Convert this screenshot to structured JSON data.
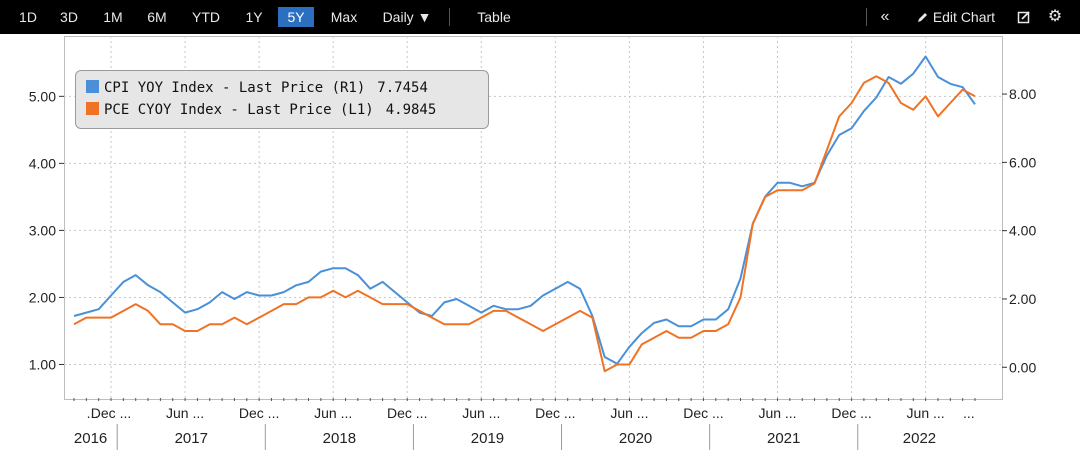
{
  "toolbar": {
    "periods": [
      "1D",
      "3D",
      "1M",
      "6M",
      "YTD",
      "1Y",
      "5Y",
      "Max"
    ],
    "active_period": "5Y",
    "frequency": "Daily",
    "table_label": "Table",
    "collapse_label": "«",
    "edit_chart_label": "Edit Chart",
    "icons": [
      "collapse-icon",
      "pencil-icon",
      "edit-box-icon",
      "gear-icon"
    ]
  },
  "legend": [
    {
      "name": "CPI YOY Index - Last Price (R1)",
      "value": "7.7454",
      "color": "#4a90d9"
    },
    {
      "name": "PCE CYOY Index - Last Price (L1)",
      "value": "4.9845",
      "color": "#f07325"
    }
  ],
  "chart_data": {
    "type": "line",
    "left_axis": {
      "min": 0.5,
      "max": 5.9,
      "ticks": [
        "1.00",
        "2.00",
        "3.00",
        "4.00",
        "5.00"
      ]
    },
    "right_axis": {
      "min": -0.9,
      "max": 9.7,
      "ticks": [
        "0.00",
        "2.00",
        "4.00",
        "6.00",
        "8.00"
      ]
    },
    "x_start": "2016-09",
    "x_end": "2022-10",
    "month_labels": [
      "...",
      "Dec ...",
      "Jun ...",
      "Dec ...",
      "Jun ...",
      "Dec ...",
      "Jun ...",
      "Dec ...",
      "Jun ...",
      "Dec ...",
      "Jun ...",
      "Dec ...",
      "Jun ...",
      "..."
    ],
    "year_labels": [
      "2016",
      "2017",
      "2018",
      "2019",
      "2020",
      "2021",
      "2022"
    ],
    "grid": true,
    "legend_position": "top-left",
    "series": [
      {
        "name": "CPI YOY Index - Last Price (R1)",
        "axis": "right",
        "color": "#4a90d9",
        "points": [
          [
            "2016-09",
            1.5
          ],
          [
            "2016-10",
            1.6
          ],
          [
            "2016-11",
            1.7
          ],
          [
            "2016-12",
            2.1
          ],
          [
            "2017-01",
            2.5
          ],
          [
            "2017-02",
            2.7
          ],
          [
            "2017-03",
            2.4
          ],
          [
            "2017-04",
            2.2
          ],
          [
            "2017-05",
            1.9
          ],
          [
            "2017-06",
            1.6
          ],
          [
            "2017-07",
            1.7
          ],
          [
            "2017-08",
            1.9
          ],
          [
            "2017-09",
            2.2
          ],
          [
            "2017-10",
            2.0
          ],
          [
            "2017-11",
            2.2
          ],
          [
            "2017-12",
            2.1
          ],
          [
            "2018-01",
            2.1
          ],
          [
            "2018-02",
            2.2
          ],
          [
            "2018-03",
            2.4
          ],
          [
            "2018-04",
            2.5
          ],
          [
            "2018-05",
            2.8
          ],
          [
            "2018-06",
            2.9
          ],
          [
            "2018-07",
            2.9
          ],
          [
            "2018-08",
            2.7
          ],
          [
            "2018-09",
            2.3
          ],
          [
            "2018-10",
            2.5
          ],
          [
            "2018-11",
            2.2
          ],
          [
            "2018-12",
            1.9
          ],
          [
            "2019-01",
            1.6
          ],
          [
            "2019-02",
            1.5
          ],
          [
            "2019-03",
            1.9
          ],
          [
            "2019-04",
            2.0
          ],
          [
            "2019-05",
            1.8
          ],
          [
            "2019-06",
            1.6
          ],
          [
            "2019-07",
            1.8
          ],
          [
            "2019-08",
            1.7
          ],
          [
            "2019-09",
            1.7
          ],
          [
            "2019-10",
            1.8
          ],
          [
            "2019-11",
            2.1
          ],
          [
            "2019-12",
            2.3
          ],
          [
            "2020-01",
            2.5
          ],
          [
            "2020-02",
            2.3
          ],
          [
            "2020-03",
            1.5
          ],
          [
            "2020-04",
            0.3
          ],
          [
            "2020-05",
            0.1
          ],
          [
            "2020-06",
            0.6
          ],
          [
            "2020-07",
            1.0
          ],
          [
            "2020-08",
            1.3
          ],
          [
            "2020-09",
            1.4
          ],
          [
            "2020-10",
            1.2
          ],
          [
            "2020-11",
            1.2
          ],
          [
            "2020-12",
            1.4
          ],
          [
            "2021-01",
            1.4
          ],
          [
            "2021-02",
            1.7
          ],
          [
            "2021-03",
            2.6
          ],
          [
            "2021-04",
            4.2
          ],
          [
            "2021-05",
            5.0
          ],
          [
            "2021-06",
            5.4
          ],
          [
            "2021-07",
            5.4
          ],
          [
            "2021-08",
            5.3
          ],
          [
            "2021-09",
            5.4
          ],
          [
            "2021-10",
            6.2
          ],
          [
            "2021-11",
            6.8
          ],
          [
            "2021-12",
            7.0
          ],
          [
            "2022-01",
            7.5
          ],
          [
            "2022-02",
            7.9
          ],
          [
            "2022-03",
            8.5
          ],
          [
            "2022-04",
            8.3
          ],
          [
            "2022-05",
            8.6
          ],
          [
            "2022-06",
            9.1
          ],
          [
            "2022-07",
            8.5
          ],
          [
            "2022-08",
            8.3
          ],
          [
            "2022-09",
            8.2
          ],
          [
            "2022-10",
            7.7
          ]
        ]
      },
      {
        "name": "PCE CYOY Index - Last Price (L1)",
        "axis": "left",
        "color": "#f07325",
        "points": [
          [
            "2016-09",
            1.6
          ],
          [
            "2016-10",
            1.7
          ],
          [
            "2016-11",
            1.7
          ],
          [
            "2016-12",
            1.7
          ],
          [
            "2017-01",
            1.8
          ],
          [
            "2017-02",
            1.9
          ],
          [
            "2017-03",
            1.8
          ],
          [
            "2017-04",
            1.6
          ],
          [
            "2017-05",
            1.6
          ],
          [
            "2017-06",
            1.5
          ],
          [
            "2017-07",
            1.5
          ],
          [
            "2017-08",
            1.6
          ],
          [
            "2017-09",
            1.6
          ],
          [
            "2017-10",
            1.7
          ],
          [
            "2017-11",
            1.6
          ],
          [
            "2017-12",
            1.7
          ],
          [
            "2018-01",
            1.8
          ],
          [
            "2018-02",
            1.9
          ],
          [
            "2018-03",
            1.9
          ],
          [
            "2018-04",
            2.0
          ],
          [
            "2018-05",
            2.0
          ],
          [
            "2018-06",
            2.1
          ],
          [
            "2018-07",
            2.0
          ],
          [
            "2018-08",
            2.1
          ],
          [
            "2018-09",
            2.0
          ],
          [
            "2018-10",
            1.9
          ],
          [
            "2018-11",
            1.9
          ],
          [
            "2018-12",
            1.9
          ],
          [
            "2019-01",
            1.8
          ],
          [
            "2019-02",
            1.7
          ],
          [
            "2019-03",
            1.6
          ],
          [
            "2019-04",
            1.6
          ],
          [
            "2019-05",
            1.6
          ],
          [
            "2019-06",
            1.7
          ],
          [
            "2019-07",
            1.8
          ],
          [
            "2019-08",
            1.8
          ],
          [
            "2019-09",
            1.7
          ],
          [
            "2019-10",
            1.6
          ],
          [
            "2019-11",
            1.5
          ],
          [
            "2019-12",
            1.6
          ],
          [
            "2020-01",
            1.7
          ],
          [
            "2020-02",
            1.8
          ],
          [
            "2020-03",
            1.7
          ],
          [
            "2020-04",
            0.9
          ],
          [
            "2020-05",
            1.0
          ],
          [
            "2020-06",
            1.0
          ],
          [
            "2020-07",
            1.3
          ],
          [
            "2020-08",
            1.4
          ],
          [
            "2020-09",
            1.5
          ],
          [
            "2020-10",
            1.4
          ],
          [
            "2020-11",
            1.4
          ],
          [
            "2020-12",
            1.5
          ],
          [
            "2021-01",
            1.5
          ],
          [
            "2021-02",
            1.6
          ],
          [
            "2021-03",
            2.0
          ],
          [
            "2021-04",
            3.1
          ],
          [
            "2021-05",
            3.5
          ],
          [
            "2021-06",
            3.6
          ],
          [
            "2021-07",
            3.6
          ],
          [
            "2021-08",
            3.6
          ],
          [
            "2021-09",
            3.7
          ],
          [
            "2021-10",
            4.2
          ],
          [
            "2021-11",
            4.7
          ],
          [
            "2021-12",
            4.9
          ],
          [
            "2022-01",
            5.2
          ],
          [
            "2022-02",
            5.3
          ],
          [
            "2022-03",
            5.2
          ],
          [
            "2022-04",
            4.9
          ],
          [
            "2022-05",
            4.8
          ],
          [
            "2022-06",
            5.0
          ],
          [
            "2022-07",
            4.7
          ],
          [
            "2022-08",
            4.9
          ],
          [
            "2022-09",
            5.1
          ],
          [
            "2022-10",
            5.0
          ]
        ]
      }
    ]
  }
}
